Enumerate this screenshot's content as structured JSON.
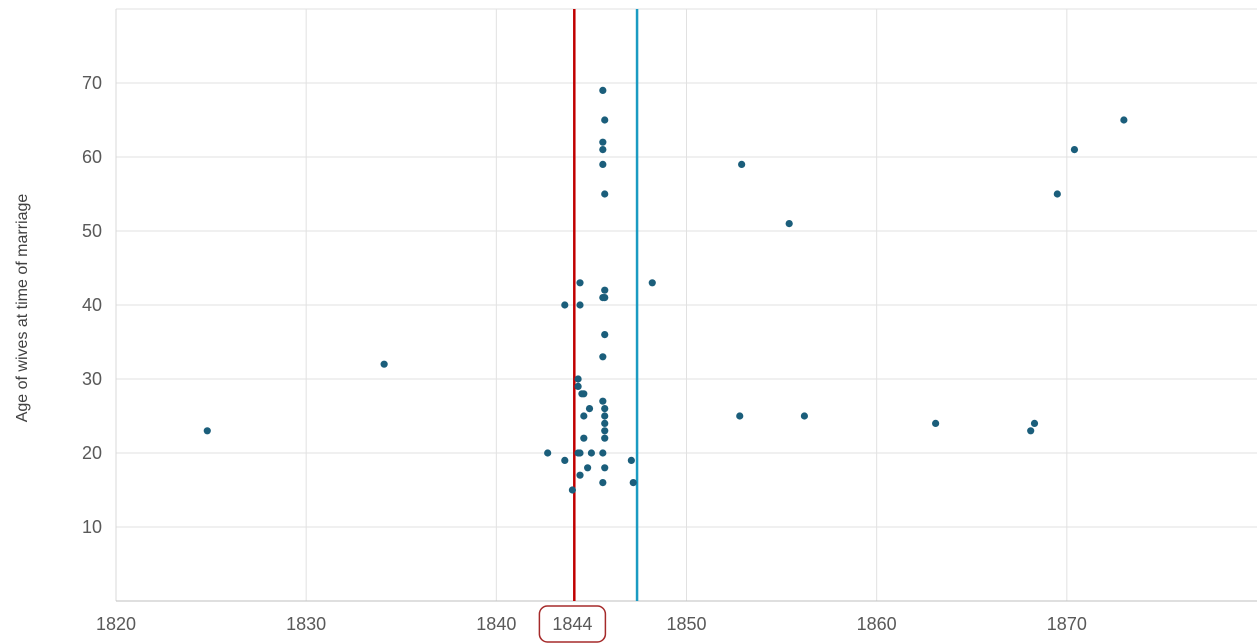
{
  "chart_data": {
    "type": "scatter",
    "xlabel": "",
    "ylabel": "Age of wives at time of marriage",
    "xlim": [
      1820,
      1880
    ],
    "ylim": [
      0,
      80
    ],
    "x_ticks": [
      1820,
      1830,
      1840,
      1850,
      1860,
      1870
    ],
    "y_ticks": [
      10,
      20,
      30,
      40,
      50,
      60,
      70
    ],
    "highlight_tick": "1844",
    "grid": true,
    "reference_lines": [
      {
        "x": 1844.1,
        "color": "#c00000"
      },
      {
        "x": 1847.4,
        "color": "#1a9bc2"
      }
    ],
    "point_color": "#1b5e7b",
    "series": [
      {
        "points": [
          [
            1824.8,
            23
          ],
          [
            1834.1,
            32
          ],
          [
            1842.7,
            20
          ],
          [
            1843.6,
            40
          ],
          [
            1843.6,
            19
          ],
          [
            1844.0,
            15
          ],
          [
            1844.3,
            30
          ],
          [
            1844.3,
            29
          ],
          [
            1844.4,
            43
          ],
          [
            1844.4,
            40
          ],
          [
            1844.3,
            20
          ],
          [
            1844.4,
            20
          ],
          [
            1844.4,
            17
          ],
          [
            1844.5,
            28
          ],
          [
            1844.6,
            28
          ],
          [
            1844.6,
            25
          ],
          [
            1844.6,
            22
          ],
          [
            1844.8,
            18
          ],
          [
            1844.9,
            26
          ],
          [
            1845.0,
            20
          ],
          [
            1845.6,
            69
          ],
          [
            1845.6,
            62
          ],
          [
            1845.6,
            61
          ],
          [
            1845.6,
            59
          ],
          [
            1845.6,
            41
          ],
          [
            1845.6,
            33
          ],
          [
            1845.6,
            27
          ],
          [
            1845.6,
            20
          ],
          [
            1845.6,
            16
          ],
          [
            1845.7,
            65
          ],
          [
            1845.7,
            55
          ],
          [
            1845.7,
            42
          ],
          [
            1845.7,
            41
          ],
          [
            1845.7,
            36
          ],
          [
            1845.7,
            26
          ],
          [
            1845.7,
            25
          ],
          [
            1845.7,
            24
          ],
          [
            1845.7,
            23
          ],
          [
            1845.7,
            22
          ],
          [
            1845.7,
            18
          ],
          [
            1847.1,
            19
          ],
          [
            1847.2,
            16
          ],
          [
            1848.2,
            43
          ],
          [
            1852.8,
            25
          ],
          [
            1852.9,
            59
          ],
          [
            1855.4,
            51
          ],
          [
            1856.2,
            25
          ],
          [
            1863.1,
            24
          ],
          [
            1868.1,
            23
          ],
          [
            1868.3,
            24
          ],
          [
            1869.5,
            55
          ],
          [
            1870.4,
            61
          ],
          [
            1873.0,
            65
          ]
        ]
      }
    ]
  }
}
